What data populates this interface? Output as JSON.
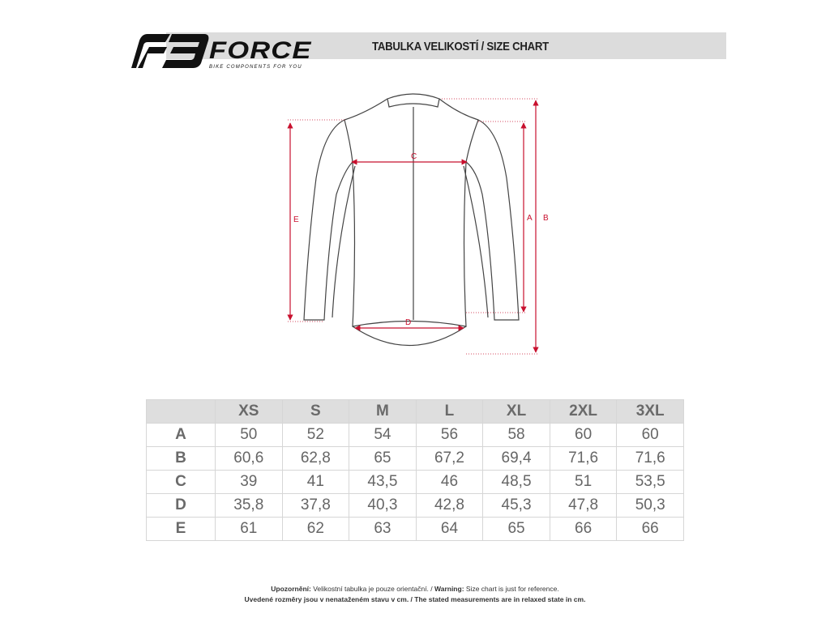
{
  "logo": {
    "brand": "FORCE",
    "tagline": "BIKE COMPONENTS FOR YOU"
  },
  "header": {
    "title": "TABULKA VELIKOSTÍ / SIZE CHART"
  },
  "diagram": {
    "labels": {
      "A": "A",
      "B": "B",
      "C": "C",
      "D": "D",
      "E": "E"
    },
    "accent": "#c8102e"
  },
  "table": {
    "columns": [
      "XS",
      "S",
      "M",
      "L",
      "XL",
      "2XL",
      "3XL"
    ],
    "rows": [
      {
        "label": "A",
        "values": [
          "50",
          "52",
          "54",
          "56",
          "58",
          "60",
          "60"
        ]
      },
      {
        "label": "B",
        "values": [
          "60,6",
          "62,8",
          "65",
          "67,2",
          "69,4",
          "71,6",
          "71,6"
        ]
      },
      {
        "label": "C",
        "values": [
          "39",
          "41",
          "43,5",
          "46",
          "48,5",
          "51",
          "53,5"
        ]
      },
      {
        "label": "D",
        "values": [
          "35,8",
          "37,8",
          "40,3",
          "42,8",
          "45,3",
          "47,8",
          "50,3"
        ]
      },
      {
        "label": "E",
        "values": [
          "61",
          "62",
          "63",
          "64",
          "65",
          "66",
          "66"
        ]
      }
    ]
  },
  "footer": {
    "line1_bold_cz": "Upozornění:",
    "line1_cz": " Velikostní tabulka je pouze orientační. / ",
    "line1_bold_en": "Warning:",
    "line1_en": " Size chart is just for reference.",
    "line2": "Uvedené rozměry jsou v nenataženém stavu v cm. / The stated measurements are in relaxed state in cm."
  }
}
